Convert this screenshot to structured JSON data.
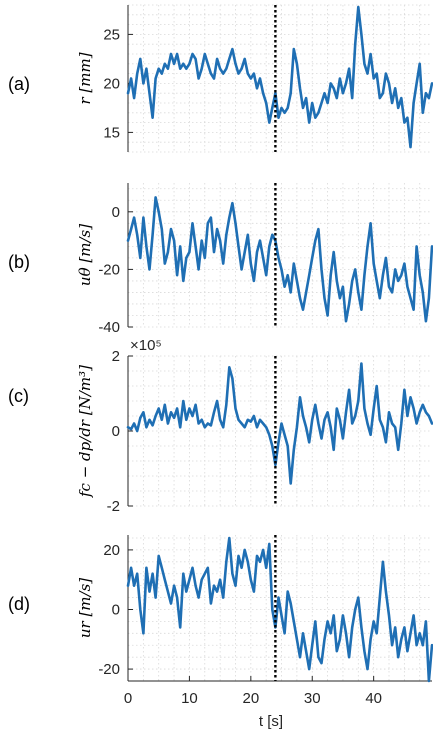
{
  "colors": {
    "series": "#1f6fb4",
    "grid": "#d9d9d9",
    "event_line": "#000000",
    "axis": "#262626"
  },
  "xlabel": "t [s]",
  "chart_data": [
    {
      "type": "line",
      "panel_label": "(a)",
      "ylabel": "r [mm]",
      "exponent": "",
      "xlim": [
        0,
        49.5
      ],
      "ylim": [
        13,
        28
      ],
      "yticks": [
        15,
        20,
        25
      ],
      "ytick_labels": [
        "15",
        "20",
        "25"
      ],
      "grid": true,
      "event_x": 24,
      "series": [
        {
          "x": [
            0,
            0.5,
            1,
            1.5,
            2,
            2.5,
            3,
            3.5,
            4,
            4.5,
            5,
            5.5,
            6,
            6.5,
            7,
            7.5,
            8,
            8.5,
            9,
            9.5,
            10,
            10.5,
            11,
            11.5,
            12,
            12.5,
            13,
            13.5,
            14,
            14.5,
            15,
            15.5,
            16,
            16.5,
            17,
            17.5,
            18,
            18.5,
            19,
            19.5,
            20,
            20.5,
            21,
            21.5,
            22,
            22.5,
            23,
            23.5,
            24,
            24.5,
            25,
            25.5,
            26,
            26.5,
            27,
            27.5,
            28,
            28.5,
            29,
            29.5,
            30,
            30.5,
            31,
            31.5,
            32,
            32.5,
            33,
            33.5,
            34,
            34.5,
            35,
            35.5,
            36,
            36.5,
            37,
            37.5,
            38,
            38.5,
            39,
            39.5,
            40,
            40.5,
            41,
            41.5,
            42,
            42.5,
            43,
            43.5,
            44,
            44.5,
            45,
            45.5,
            46,
            46.5,
            47,
            47.5,
            48,
            48.5,
            49,
            49.5
          ],
          "y": [
            19,
            20.5,
            18.5,
            21,
            22.5,
            20,
            21.5,
            19,
            16.5,
            20.5,
            21.5,
            21,
            22,
            21.5,
            23,
            22,
            23,
            21.5,
            22,
            21.5,
            22,
            23,
            22.5,
            20.5,
            21.5,
            23,
            22,
            21,
            20.5,
            22.5,
            21.5,
            21,
            21.5,
            22.5,
            23.5,
            22,
            21,
            21.5,
            22.5,
            21,
            20.5,
            21,
            19.5,
            20.5,
            19,
            18,
            16,
            17.5,
            19,
            16.5,
            17.5,
            17,
            17.5,
            19,
            23.5,
            22,
            19.5,
            17.5,
            18.5,
            16,
            18,
            16.5,
            17,
            18,
            19,
            18,
            20,
            19.5,
            18.5,
            20.5,
            19,
            20,
            21.5,
            18.5,
            24,
            27.8,
            25,
            22,
            21,
            23,
            20.5,
            21,
            18.5,
            19,
            21,
            20,
            18,
            19.5,
            17.5,
            18.5,
            16,
            16.5,
            13.5,
            18,
            20,
            22,
            17,
            19,
            18.5,
            20
          ]
        }
      ]
    },
    {
      "type": "line",
      "panel_label": "(b)",
      "ylabel": "uθ [m/s]",
      "exponent": "",
      "xlim": [
        0,
        49.5
      ],
      "ylim": [
        -40,
        10
      ],
      "yticks": [
        -40,
        -20,
        0
      ],
      "ytick_labels": [
        "-40",
        "-20",
        "0"
      ],
      "grid": true,
      "event_x": 24,
      "series": [
        {
          "x": [
            0,
            0.5,
            1,
            1.5,
            2,
            2.5,
            3,
            3.5,
            4,
            4.5,
            5,
            5.5,
            6,
            6.5,
            7,
            7.5,
            8,
            8.5,
            9,
            9.5,
            10,
            10.5,
            11,
            11.5,
            12,
            12.5,
            13,
            13.5,
            14,
            14.5,
            15,
            15.5,
            16,
            16.5,
            17,
            17.5,
            18,
            18.5,
            19,
            19.5,
            20,
            20.5,
            21,
            21.5,
            22,
            22.5,
            23,
            23.5,
            24,
            24.5,
            25,
            25.5,
            26,
            26.5,
            27,
            27.5,
            28,
            28.5,
            29,
            29.5,
            30,
            30.5,
            31,
            31.5,
            32,
            32.5,
            33,
            33.5,
            34,
            34.5,
            35,
            35.5,
            36,
            36.5,
            37,
            37.5,
            38,
            38.5,
            39,
            39.5,
            40,
            40.5,
            41,
            41.5,
            42,
            42.5,
            43,
            43.5,
            44,
            44.5,
            45,
            45.5,
            46,
            46.5,
            47,
            47.5,
            48,
            48.5,
            49,
            49.5
          ],
          "y": [
            -10,
            -6,
            -2,
            -8,
            -16,
            -2,
            -12,
            -20,
            -8,
            5,
            0,
            -6,
            -18,
            -14,
            -6,
            -10,
            -22,
            -12,
            -24,
            -16,
            -14,
            -4,
            -12,
            -20,
            -10,
            -16,
            -4,
            -2,
            -14,
            -6,
            -10,
            -18,
            -8,
            -2,
            3,
            -4,
            -12,
            -20,
            -14,
            -8,
            -18,
            -24,
            -14,
            -10,
            -16,
            -22,
            -12,
            -8,
            -10,
            -16,
            -20,
            -26,
            -22,
            -28,
            -18,
            -24,
            -30,
            -34,
            -28,
            -22,
            -16,
            -10,
            -6,
            -20,
            -30,
            -36,
            -22,
            -14,
            -24,
            -30,
            -26,
            -38,
            -32,
            -24,
            -20,
            -28,
            -34,
            -22,
            -12,
            -4,
            -18,
            -24,
            -30,
            -22,
            -16,
            -26,
            -28,
            -20,
            -24,
            -22,
            -18,
            -26,
            -30,
            -34,
            -12,
            -22,
            -28,
            -38,
            -30,
            -12
          ]
        }
      ]
    },
    {
      "type": "line",
      "panel_label": "(c)",
      "ylabel": "fc − dp/dr [N/m³]",
      "exponent": "×10⁵",
      "xlim": [
        0,
        49.5
      ],
      "ylim": [
        -2,
        2
      ],
      "yticks": [
        -2,
        0,
        2
      ],
      "ytick_labels": [
        "-2",
        "0",
        "2"
      ],
      "grid": true,
      "event_x": 24,
      "series": [
        {
          "x": [
            0,
            0.5,
            1,
            1.5,
            2,
            2.5,
            3,
            3.5,
            4,
            4.5,
            5,
            5.5,
            6,
            6.5,
            7,
            7.5,
            8,
            8.5,
            9,
            9.5,
            10,
            10.5,
            11,
            11.5,
            12,
            12.5,
            13,
            13.5,
            14,
            14.5,
            15,
            15.5,
            16,
            16.5,
            17,
            17.5,
            18,
            18.5,
            19,
            19.5,
            20,
            20.5,
            21,
            21.5,
            22,
            22.5,
            23,
            23.5,
            24,
            24.5,
            25,
            25.5,
            26,
            26.5,
            27,
            27.5,
            28,
            28.5,
            29,
            29.5,
            30,
            30.5,
            31,
            31.5,
            32,
            32.5,
            33,
            33.5,
            34,
            34.5,
            35,
            35.5,
            36,
            36.5,
            37,
            37.5,
            38,
            38.5,
            39,
            39.5,
            40,
            40.5,
            41,
            41.5,
            42,
            42.5,
            43,
            43.5,
            44,
            44.5,
            45,
            45.5,
            46,
            46.5,
            47,
            47.5,
            48,
            48.5,
            49,
            49.5
          ],
          "y": [
            0.1,
            0.05,
            0.2,
            0,
            0.35,
            0.5,
            0.1,
            0.3,
            0.15,
            0.4,
            0.6,
            0.3,
            0.7,
            0.2,
            0.5,
            0.35,
            0.6,
            0.1,
            0.8,
            0.3,
            0.6,
            0.4,
            0.7,
            0.2,
            0.3,
            0.1,
            0.2,
            0.15,
            0.5,
            0.8,
            0.3,
            0.1,
            0.7,
            1.7,
            1.4,
            0.6,
            0.3,
            0.2,
            0.1,
            0.3,
            0.25,
            0.4,
            0.1,
            0.3,
            0.2,
            0.1,
            -0.1,
            -0.4,
            -0.9,
            -0.3,
            0.2,
            -0.1,
            -0.4,
            -1.4,
            -0.5,
            0.1,
            0.9,
            0.4,
            0.1,
            -0.3,
            0.3,
            0.7,
            0.2,
            -0.2,
            0.3,
            0.5,
            0.1,
            -0.5,
            0.6,
            0.3,
            -0.2,
            0.5,
            1.1,
            0.2,
            0.4,
            0.8,
            1.8,
            0.6,
            0.2,
            -0.1,
            0.6,
            1.2,
            0.3,
            0.1,
            -0.3,
            0.5,
            0.2,
            0.1,
            -0.5,
            0.2,
            1.1,
            0.4,
            0.9,
            0.6,
            0.2,
            0.5,
            0.7,
            0.5,
            0.4,
            0.2
          ]
        }
      ]
    },
    {
      "type": "line",
      "panel_label": "(d)",
      "ylabel": "ur [m/s]",
      "exponent": "",
      "xlim": [
        0,
        49.5
      ],
      "ylim": [
        -24,
        25
      ],
      "yticks": [
        -20,
        0,
        20
      ],
      "ytick_labels": [
        "-20",
        "0",
        "20"
      ],
      "grid": true,
      "event_x": 24,
      "series": [
        {
          "x": [
            0,
            0.5,
            1,
            1.5,
            2,
            2.5,
            3,
            3.5,
            4,
            4.5,
            5,
            5.5,
            6,
            6.5,
            7,
            7.5,
            8,
            8.5,
            9,
            9.5,
            10,
            10.5,
            11,
            11.5,
            12,
            12.5,
            13,
            13.5,
            14,
            14.5,
            15,
            15.5,
            16,
            16.5,
            17,
            17.5,
            18,
            18.5,
            19,
            19.5,
            20,
            20.5,
            21,
            21.5,
            22,
            22.5,
            23,
            23.5,
            24,
            24.5,
            25,
            25.5,
            26,
            26.5,
            27,
            27.5,
            28,
            28.5,
            29,
            29.5,
            30,
            30.5,
            31,
            31.5,
            32,
            32.5,
            33,
            33.5,
            34,
            34.5,
            35,
            35.5,
            36,
            36.5,
            37,
            37.5,
            38,
            38.5,
            39,
            39.5,
            40,
            40.5,
            41,
            41.5,
            42,
            42.5,
            43,
            43.5,
            44,
            44.5,
            45,
            45.5,
            46,
            46.5,
            47,
            47.5,
            48,
            48.5,
            49,
            49.5
          ],
          "y": [
            8,
            14,
            8,
            12,
            0,
            -8,
            14,
            6,
            12,
            4,
            18,
            14,
            10,
            6,
            2,
            8,
            4,
            -6,
            12,
            6,
            10,
            14,
            8,
            4,
            10,
            12,
            14,
            2,
            8,
            6,
            10,
            4,
            16,
            24,
            12,
            8,
            18,
            14,
            20,
            16,
            10,
            6,
            18,
            16,
            20,
            14,
            22,
            0,
            -6,
            4,
            -2,
            -8,
            6,
            2,
            -4,
            -10,
            -16,
            -8,
            -14,
            -20,
            -12,
            -4,
            -16,
            -18,
            -10,
            -4,
            -8,
            -2,
            -14,
            -10,
            -2,
            -8,
            -16,
            -6,
            0,
            4,
            -6,
            -14,
            -20,
            -10,
            -4,
            -8,
            4,
            16,
            6,
            -2,
            -12,
            -6,
            -16,
            -10,
            -6,
            -14,
            -8,
            -2,
            -12,
            -8,
            -12,
            -4,
            -24,
            -12
          ]
        }
      ]
    }
  ]
}
